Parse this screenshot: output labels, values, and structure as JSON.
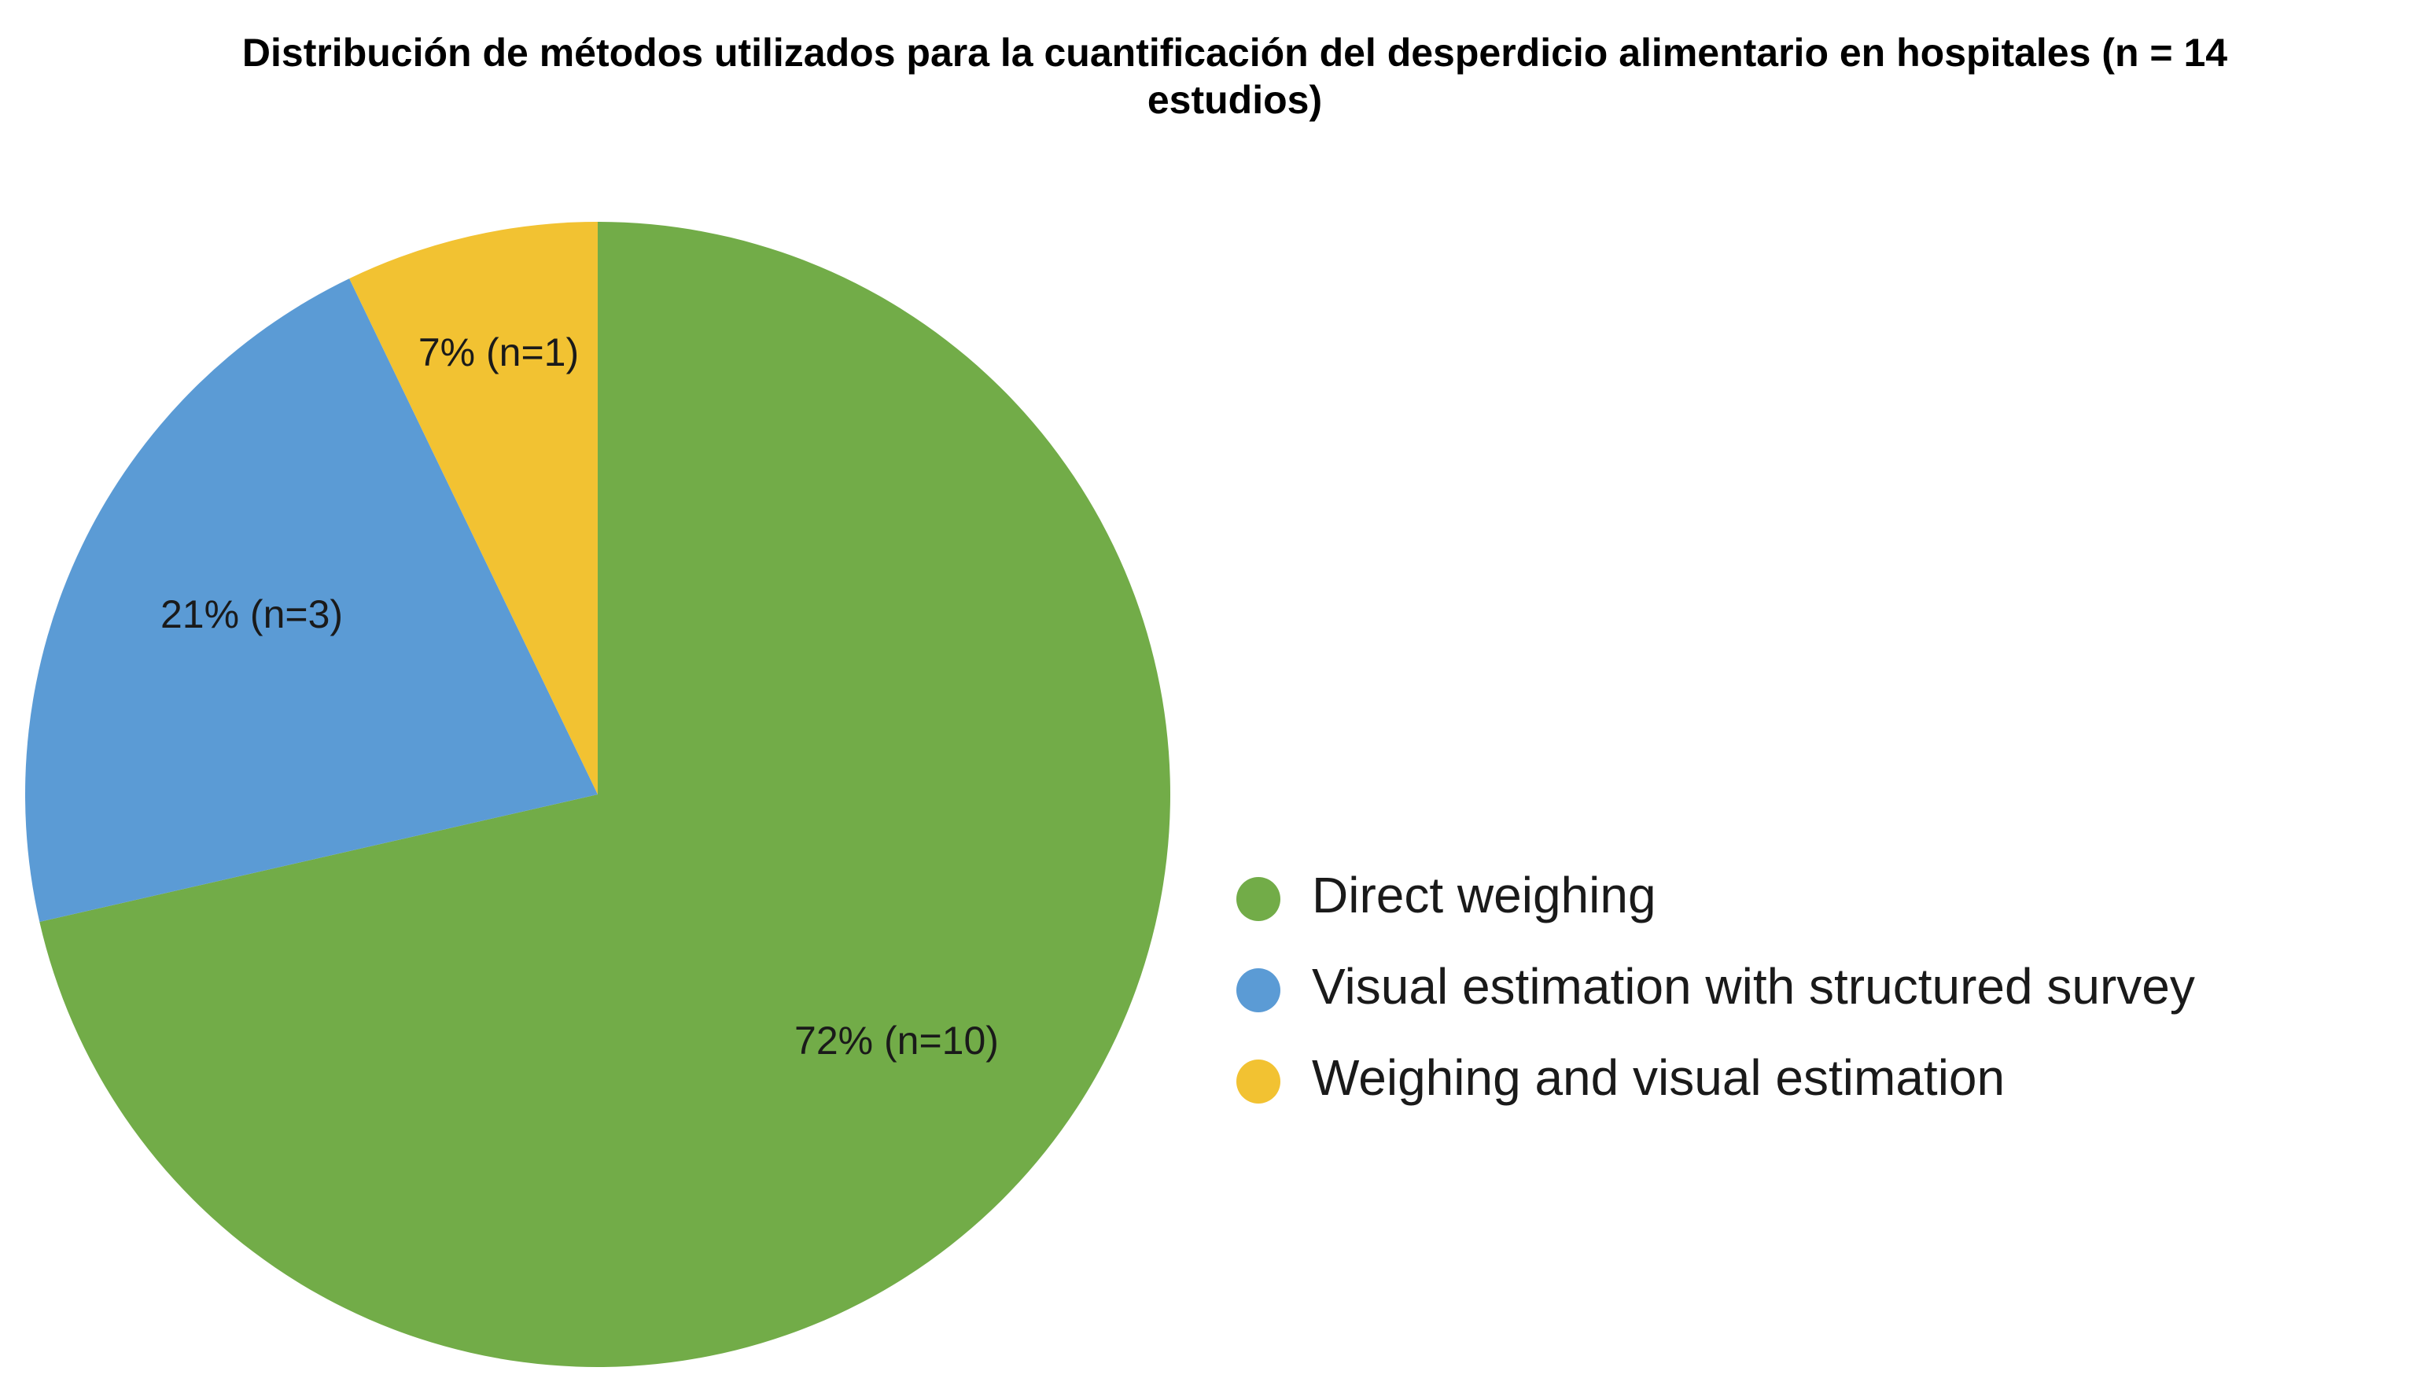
{
  "chart_data": {
    "type": "pie",
    "title": "Distribución de métodos utilizados para la cuantificación del desperdicio alimentario en hospitales (n = 14 estudios)",
    "title_lines": [
      "Distribución de métodos utilizados para la cuantificación del desperdicio alimentario en hospitales (n = 14",
      "estudios)"
    ],
    "start_angle": "12 o'clock",
    "direction": "clockwise",
    "legend_position": "right",
    "slices": [
      {
        "name": "Direct weighing",
        "value": 10,
        "percent": 72,
        "label": "72% (n=10)",
        "color": "#72AC48"
      },
      {
        "name": "Visual estimation with structured survey",
        "value": 3,
        "percent": 21,
        "label": "21% (n=3)",
        "color": "#5B9BD5"
      },
      {
        "name": "Weighing and visual estimation",
        "value": 1,
        "percent": 7,
        "label": "7% (n=1)",
        "color": "#F2C232"
      }
    ]
  }
}
